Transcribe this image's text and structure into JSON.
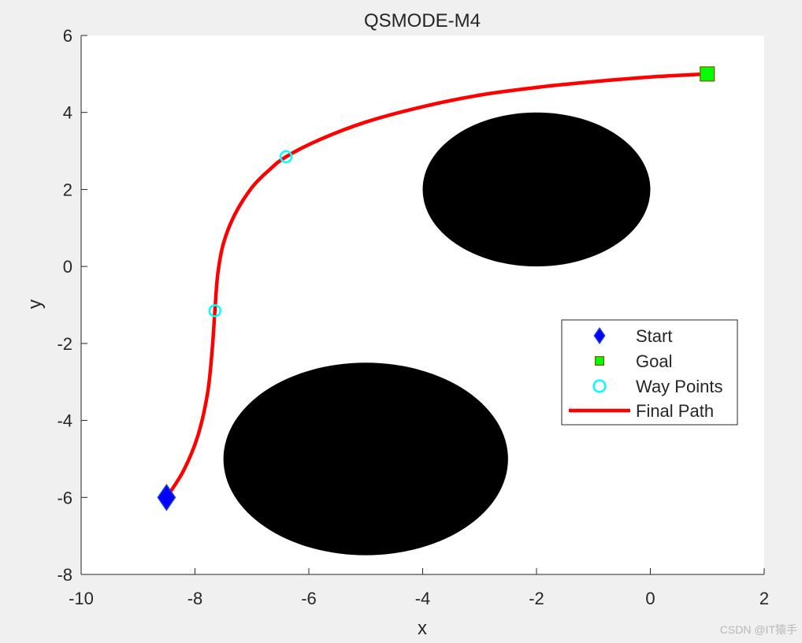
{
  "chart_data": {
    "type": "scatter",
    "title": "QSMODE-M4",
    "xlabel": "x",
    "ylabel": "y",
    "xlim": [
      -10,
      2
    ],
    "ylim": [
      -8,
      6
    ],
    "xticks": [
      -10,
      -8,
      -6,
      -4,
      -2,
      0,
      2
    ],
    "yticks": [
      -8,
      -6,
      -4,
      -2,
      0,
      2,
      4,
      6
    ],
    "grid": false,
    "legend_position": "right",
    "obstacles": [
      {
        "shape": "ellipse",
        "cx": -2,
        "cy": 2,
        "rx": 2,
        "ry": 2,
        "color": "#000000"
      },
      {
        "shape": "ellipse",
        "cx": -5,
        "cy": -5,
        "rx": 2.5,
        "ry": 2.5,
        "color": "#000000"
      }
    ],
    "series": [
      {
        "name": "Start",
        "marker": "diamond",
        "color": "#0000ff",
        "points": [
          [
            -8.5,
            -6
          ]
        ]
      },
      {
        "name": "Goal",
        "marker": "square",
        "color": "#00ff00",
        "points": [
          [
            1,
            5
          ]
        ]
      },
      {
        "name": "Way Points",
        "marker": "circle",
        "color": "#00ffff",
        "points": [
          [
            -7.65,
            -1.15
          ],
          [
            -6.4,
            2.85
          ]
        ]
      },
      {
        "name": "Final Path",
        "marker": "line",
        "color": "#ff0000",
        "points": [
          [
            -8.5,
            -6
          ],
          [
            -8.2,
            -5.3
          ],
          [
            -7.95,
            -4.4
          ],
          [
            -7.78,
            -3.3
          ],
          [
            -7.7,
            -2.2
          ],
          [
            -7.65,
            -1.15
          ],
          [
            -7.6,
            -0.2
          ],
          [
            -7.5,
            0.6
          ],
          [
            -7.3,
            1.35
          ],
          [
            -7.0,
            2.05
          ],
          [
            -6.7,
            2.5
          ],
          [
            -6.4,
            2.85
          ],
          [
            -5.8,
            3.3
          ],
          [
            -5.0,
            3.75
          ],
          [
            -4.0,
            4.15
          ],
          [
            -3.0,
            4.45
          ],
          [
            -2.0,
            4.65
          ],
          [
            -1.0,
            4.8
          ],
          [
            0.0,
            4.92
          ],
          [
            1.0,
            5.0
          ]
        ]
      }
    ]
  },
  "watermark": "CSDN @IT猿手"
}
